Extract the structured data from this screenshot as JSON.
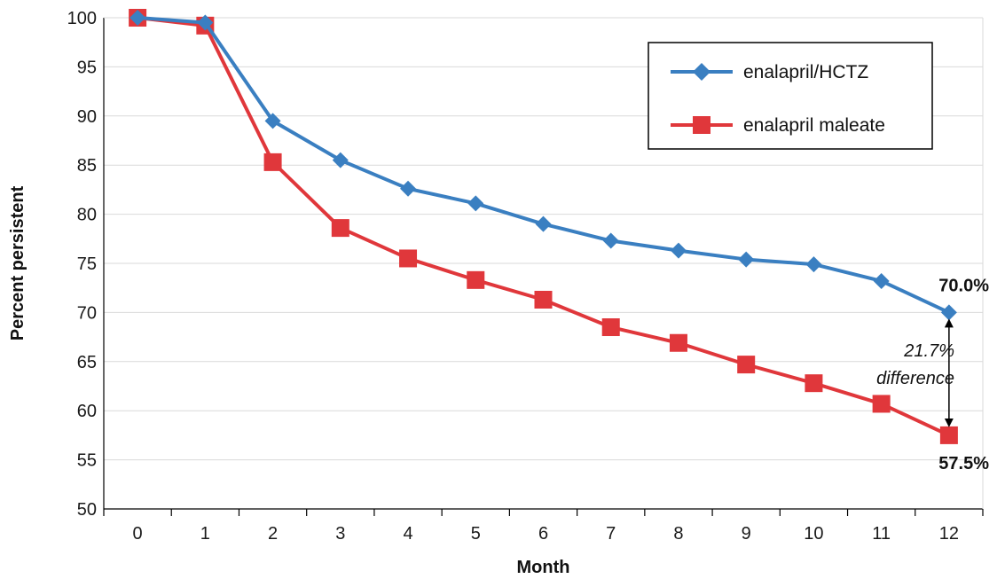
{
  "chart_data": {
    "type": "line",
    "title": "",
    "xlabel": "Month",
    "ylabel": "Percent persistent",
    "x": [
      0,
      1,
      2,
      3,
      4,
      5,
      6,
      7,
      8,
      9,
      10,
      11,
      12
    ],
    "x_tick_labels": [
      "0",
      "1",
      "2",
      "3",
      "4",
      "5",
      "6",
      "7",
      "8",
      "9",
      "10",
      "11",
      "12"
    ],
    "ylim": [
      50,
      100
    ],
    "y_ticks": [
      50,
      55,
      60,
      65,
      70,
      75,
      80,
      85,
      90,
      95,
      100
    ],
    "y_tick_labels": [
      "50",
      "55",
      "60",
      "65",
      "70",
      "75",
      "80",
      "85",
      "90",
      "95",
      "100"
    ],
    "grid": "horizontal",
    "legend_position": "top-right",
    "series": [
      {
        "name": "enalapril/HCTZ",
        "color": "#3a7fc1",
        "marker": "diamond",
        "values": [
          100,
          99.5,
          89.5,
          85.5,
          82.6,
          81.1,
          79.0,
          77.3,
          76.3,
          75.4,
          74.9,
          73.2,
          70.0
        ]
      },
      {
        "name": "enalapril maleate",
        "color": "#e0373b",
        "marker": "square",
        "values": [
          100,
          99.2,
          85.3,
          78.6,
          75.5,
          73.3,
          71.3,
          68.5,
          66.9,
          64.7,
          62.8,
          60.7,
          57.5
        ]
      }
    ],
    "annotations": {
      "top_end_label": "70.0%",
      "bottom_end_label": "57.5%",
      "difference_line1": "21.7%",
      "difference_line2": "difference"
    }
  }
}
